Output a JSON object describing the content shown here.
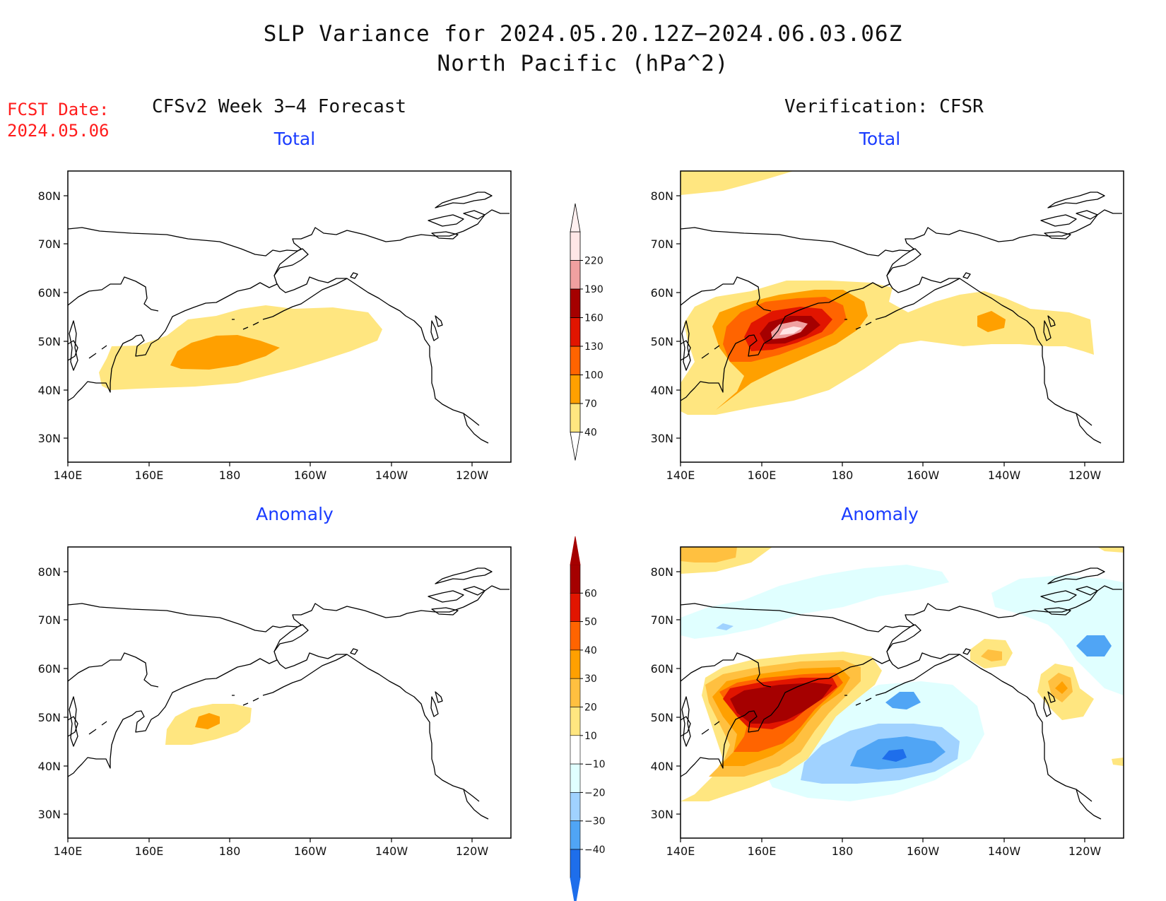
{
  "title": {
    "line1": "SLP Variance for 2024.05.20.12Z−2024.06.03.06Z",
    "line2": "North Pacific (hPa^2)"
  },
  "fcst": {
    "label": "FCST Date:",
    "date": "2024.05.06"
  },
  "columns": {
    "left": "CFSv2 Week 3−4 Forecast",
    "right": "Verification: CFSR"
  },
  "panels": {
    "top_left": "Total",
    "top_right": "Total",
    "bottom_left": "Anomaly",
    "bottom_right": "Anomaly"
  },
  "axes": {
    "lat_labels": [
      "80N",
      "70N",
      "60N",
      "50N",
      "40N",
      "30N"
    ],
    "lon_labels": [
      "140E",
      "160E",
      "180",
      "160W",
      "140W",
      "120W"
    ]
  },
  "legends": {
    "total": {
      "levels": [
        "40",
        "70",
        "100",
        "130",
        "160",
        "190",
        "220"
      ],
      "colors": [
        "#ffe680",
        "#ffa000",
        "#ff6400",
        "#e11500",
        "#a50000",
        "#f0a0a0",
        "#ffe6e6"
      ]
    },
    "anomaly": {
      "levels": [
        "60",
        "50",
        "40",
        "30",
        "20",
        "10",
        "−10",
        "−20",
        "−30",
        "−40"
      ],
      "colors": [
        "#a50000",
        "#e11500",
        "#ff6400",
        "#ffa000",
        "#ffc040",
        "#ffe680",
        "#ffffff",
        "#e0ffff",
        "#a0d2ff",
        "#50a5f5",
        "#1e6eeb"
      ]
    }
  },
  "colors": {
    "title_text": "#111111",
    "subtitle_blue": "#1a3cff",
    "fcst_red": "#ff1c1c"
  }
}
